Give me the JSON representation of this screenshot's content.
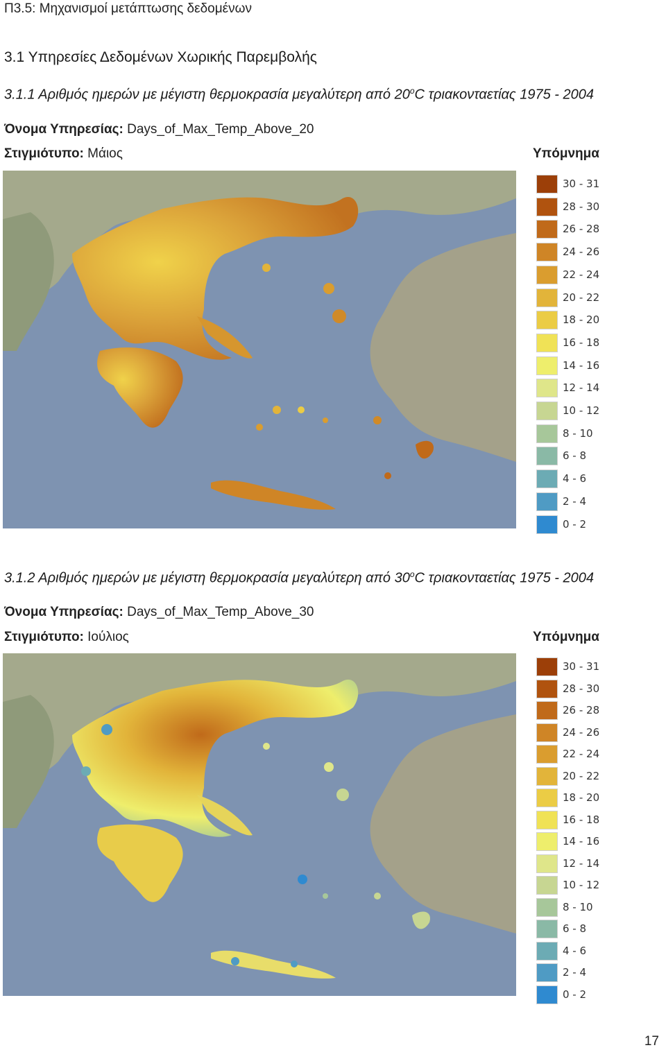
{
  "header": {
    "running_title": "Π3.5: Μηχανισμοί μετάπτωσης δεδομένων"
  },
  "section": {
    "title": "3.1 Υπηρεσίες Δεδομένων Χωρικής Παρεμβολής"
  },
  "maps": [
    {
      "title_prefix": "3.1.1 Αριθμός ημερών με μέγιστη θερμοκρασία μεγαλύτερη  από 20",
      "title_sup": "ο",
      "title_suffix": "C τριακονταετίας 1975 - 2004",
      "service_label": "Όνομα Υπηρεσίας:",
      "service_value": " Days_of_Max_Temp_Above_20",
      "snapshot_label": "Στιγμιότυπο:",
      "snapshot_value": " Μάιος",
      "legend_title": "Υπόμνημα"
    },
    {
      "title_prefix": "3.1.2 Αριθμός ημερών με μέγιστη θερμοκρασία μεγαλύτερη  από 30",
      "title_sup": "ο",
      "title_suffix": "C τριακονταετίας 1975 - 2004",
      "service_label": "Όνομα Υπηρεσίας:",
      "service_value": " Days_of_Max_Temp_Above_30",
      "snapshot_label": "Στιγμιότυπο:",
      "snapshot_value": " Ιούλιος",
      "legend_title": "Υπόμνημα"
    }
  ],
  "legend_classes": [
    {
      "label": "30 - 31",
      "color": "#9c3f08"
    },
    {
      "label": "28 - 30",
      "color": "#b0530f"
    },
    {
      "label": "26 - 28",
      "color": "#c06a1a"
    },
    {
      "label": "24 - 26",
      "color": "#cf8526"
    },
    {
      "label": "22 - 24",
      "color": "#da9d2f"
    },
    {
      "label": "20 - 22",
      "color": "#e2b43a"
    },
    {
      "label": "18 - 20",
      "color": "#ebcc45"
    },
    {
      "label": "16 - 18",
      "color": "#f0e256"
    },
    {
      "label": "14 - 16",
      "color": "#eeee6c"
    },
    {
      "label": "12 - 14",
      "color": "#dfe68a"
    },
    {
      "label": "10 - 12",
      "color": "#c7d692"
    },
    {
      "label": "8 - 10",
      "color": "#a7c79a"
    },
    {
      "label": "6 - 8",
      "color": "#8ab9a6"
    },
    {
      "label": "4 - 6",
      "color": "#6cabb4"
    },
    {
      "label": "2 - 4",
      "color": "#4f9bc4"
    },
    {
      "label": "0 - 2",
      "color": "#2f8ad0"
    }
  ],
  "page": {
    "number": "17"
  }
}
